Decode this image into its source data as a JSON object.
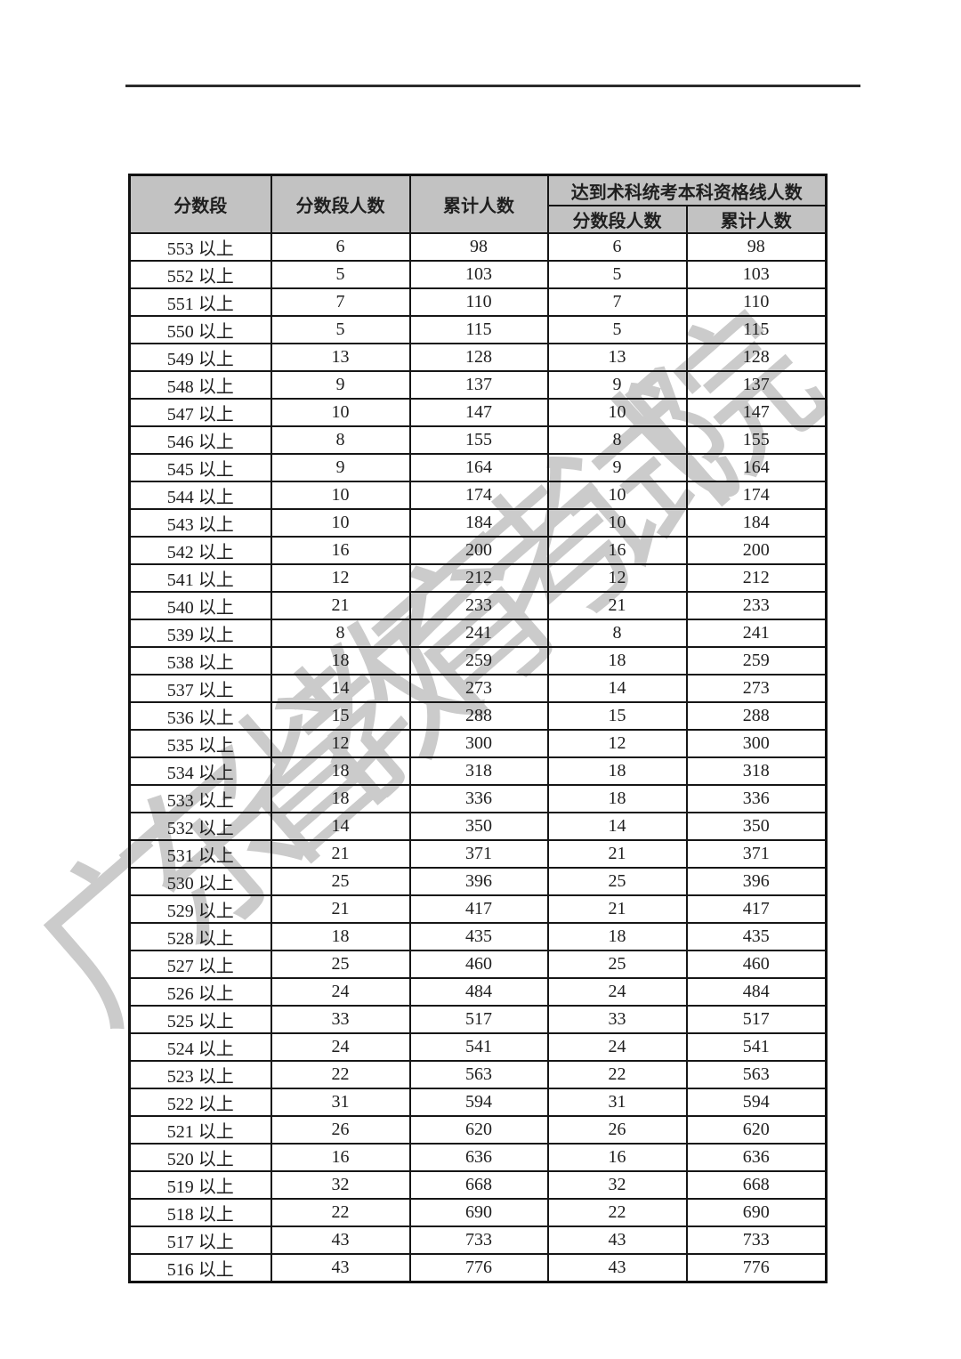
{
  "watermark": {
    "text": "广东省教育考试院",
    "color": "#cbcbcb"
  },
  "table": {
    "header": {
      "col_score_range": "分数段",
      "col_range_count": "分数段人数",
      "col_cumulative": "累计人数",
      "col_qualified_group": "达到术科统考本科资格线人数",
      "sub_range_count": "分数段人数",
      "sub_cumulative": "累计人数"
    },
    "rows": [
      [
        "553 以上",
        6,
        98,
        6,
        98
      ],
      [
        "552 以上",
        5,
        103,
        5,
        103
      ],
      [
        "551 以上",
        7,
        110,
        7,
        110
      ],
      [
        "550 以上",
        5,
        115,
        5,
        115
      ],
      [
        "549 以上",
        13,
        128,
        13,
        128
      ],
      [
        "548 以上",
        9,
        137,
        9,
        137
      ],
      [
        "547 以上",
        10,
        147,
        10,
        147
      ],
      [
        "546 以上",
        8,
        155,
        8,
        155
      ],
      [
        "545 以上",
        9,
        164,
        9,
        164
      ],
      [
        "544 以上",
        10,
        174,
        10,
        174
      ],
      [
        "543 以上",
        10,
        184,
        10,
        184
      ],
      [
        "542 以上",
        16,
        200,
        16,
        200
      ],
      [
        "541 以上",
        12,
        212,
        12,
        212
      ],
      [
        "540 以上",
        21,
        233,
        21,
        233
      ],
      [
        "539 以上",
        8,
        241,
        8,
        241
      ],
      [
        "538 以上",
        18,
        259,
        18,
        259
      ],
      [
        "537 以上",
        14,
        273,
        14,
        273
      ],
      [
        "536 以上",
        15,
        288,
        15,
        288
      ],
      [
        "535 以上",
        12,
        300,
        12,
        300
      ],
      [
        "534 以上",
        18,
        318,
        18,
        318
      ],
      [
        "533 以上",
        18,
        336,
        18,
        336
      ],
      [
        "532 以上",
        14,
        350,
        14,
        350
      ],
      [
        "531 以上",
        21,
        371,
        21,
        371
      ],
      [
        "530 以上",
        25,
        396,
        25,
        396
      ],
      [
        "529 以上",
        21,
        417,
        21,
        417
      ],
      [
        "528 以上",
        18,
        435,
        18,
        435
      ],
      [
        "527 以上",
        25,
        460,
        25,
        460
      ],
      [
        "526 以上",
        24,
        484,
        24,
        484
      ],
      [
        "525 以上",
        33,
        517,
        33,
        517
      ],
      [
        "524 以上",
        24,
        541,
        24,
        541
      ],
      [
        "523 以上",
        22,
        563,
        22,
        563
      ],
      [
        "522 以上",
        31,
        594,
        31,
        594
      ],
      [
        "521 以上",
        26,
        620,
        26,
        620
      ],
      [
        "520 以上",
        16,
        636,
        16,
        636
      ],
      [
        "519 以上",
        32,
        668,
        32,
        668
      ],
      [
        "518 以上",
        22,
        690,
        22,
        690
      ],
      [
        "517 以上",
        43,
        733,
        43,
        733
      ],
      [
        "516 以上",
        43,
        776,
        43,
        776
      ]
    ]
  }
}
